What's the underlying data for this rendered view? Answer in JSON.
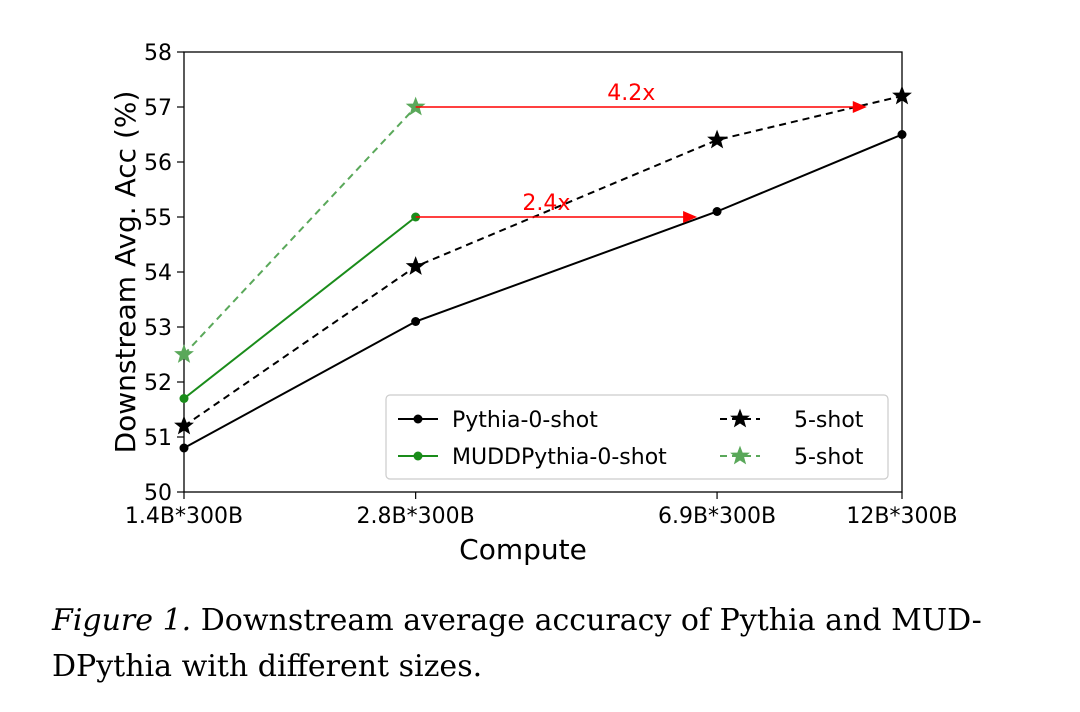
{
  "chart_data": {
    "type": "line",
    "title": "",
    "xlabel": "Compute",
    "ylabel": "Downstream Avg. Acc (%)",
    "categories": [
      "1.4B*300B",
      "2.8B*300B",
      "6.9B*300B",
      "12B*300B"
    ],
    "x_positions": [
      1.4,
      2.8,
      6.9,
      12
    ],
    "xlim": [
      1.4,
      12
    ],
    "ylim": [
      50,
      58
    ],
    "yticks": [
      50,
      51,
      52,
      53,
      54,
      55,
      56,
      57,
      58
    ],
    "grid": false,
    "legend_position": "bottom-right",
    "series": [
      {
        "name": "Pythia-0-shot",
        "legend_label": "Pythia-0-shot",
        "color": "#000000",
        "dashed": false,
        "marker": "circle",
        "x": [
          1.4,
          2.8,
          6.9,
          12
        ],
        "values": [
          50.8,
          53.1,
          55.1,
          56.5
        ]
      },
      {
        "name": "Pythia-5-shot",
        "legend_label": "5-shot",
        "color": "#000000",
        "dashed": true,
        "marker": "star",
        "x": [
          1.4,
          2.8,
          6.9,
          12
        ],
        "values": [
          51.2,
          54.1,
          56.4,
          57.2
        ]
      },
      {
        "name": "MUDDPythia-0-shot",
        "legend_label": "MUDDPythia-0-shot",
        "color": "#1a8c1a",
        "dashed": false,
        "marker": "circle",
        "x": [
          1.4,
          2.8
        ],
        "values": [
          51.7,
          55.0
        ]
      },
      {
        "name": "MUDDPythia-5-shot",
        "legend_label": "5-shot",
        "color": "#5aa85a",
        "dashed": true,
        "marker": "star",
        "x": [
          1.4,
          2.8
        ],
        "values": [
          52.5,
          57.0
        ]
      }
    ],
    "annotations": [
      {
        "text": "4.2x",
        "x_from": 2.8,
        "x_to": 10.8,
        "y": 57.0,
        "color": "#ff0000"
      },
      {
        "text": "2.4x",
        "x_from": 2.8,
        "x_to": 6.5,
        "y": 55.0,
        "color": "#ff0000"
      }
    ]
  },
  "caption": {
    "label": "Figure 1.",
    "text": " Downstream average accuracy of Pythia and MUD-DPythia with different sizes."
  }
}
